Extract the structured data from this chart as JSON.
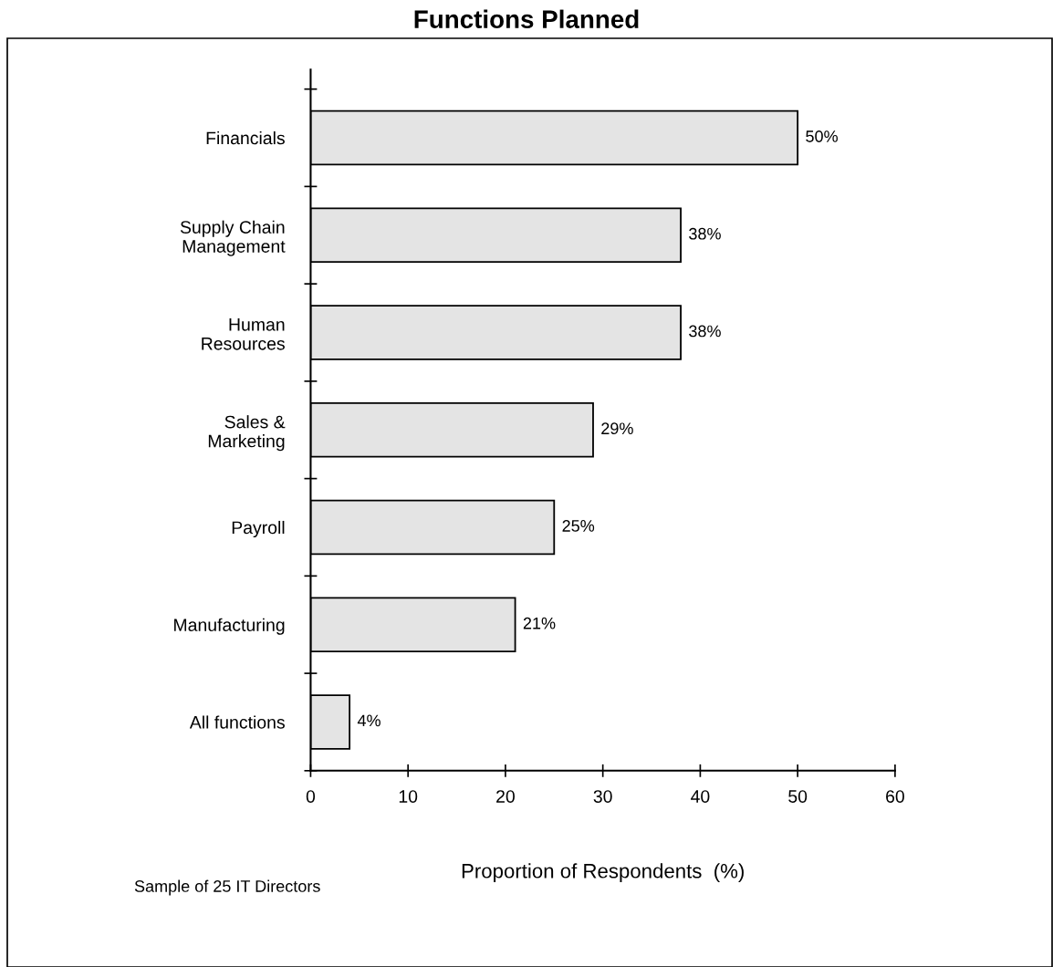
{
  "chart_data": {
    "type": "bar",
    "title": "Functions Planned",
    "orientation": "horizontal",
    "categories": [
      "Financials",
      "Supply Chain\nManagement",
      "Human\nResources",
      "Sales &\nMarketing",
      "Payroll",
      "Manufacturing",
      "All functions"
    ],
    "values": [
      50,
      38,
      38,
      29,
      25,
      21,
      4
    ],
    "value_labels": [
      "50%",
      "38%",
      "38%",
      "29%",
      "25%",
      "21%",
      "4%"
    ],
    "color": "#e4e4e4",
    "xlim": [
      0,
      60
    ],
    "xticks": [
      0,
      10,
      20,
      30,
      40,
      50,
      60
    ],
    "xlabel": "Proportion of Respondents  (%)",
    "annotations": [
      "Sample of 25 IT Directors"
    ],
    "grid": false,
    "legend": false
  }
}
